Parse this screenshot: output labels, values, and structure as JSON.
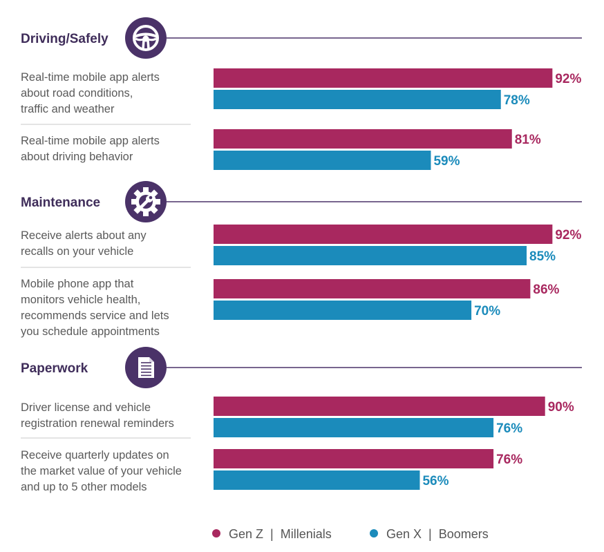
{
  "chart_data": {
    "type": "bar",
    "orientation": "horizontal",
    "xlim": [
      0,
      100
    ],
    "value_suffix": "%",
    "legend_position": "bottom-center",
    "colors": {
      "gen_z_millenials": "#a8285f",
      "gen_x_boomers": "#1b8bbb",
      "section_purple": "#4a3268",
      "divider": "#c8c8c8"
    },
    "series": [
      {
        "legend": "Gen Z  |  Millenials"
      },
      {
        "legend": "Gen X  |  Boomers"
      }
    ],
    "sections": [
      {
        "title": "Driving/Safely",
        "icon": "steering-wheel-icon",
        "items": [
          {
            "label": [
              "Real-time mobile app alerts",
              "about road conditions,",
              "traffic and weather"
            ],
            "values": [
              92,
              78
            ]
          },
          {
            "label": [
              "Real-time mobile app alerts",
              "about driving behavior"
            ],
            "values": [
              81,
              59
            ]
          }
        ]
      },
      {
        "title": "Maintenance",
        "icon": "gear-wrench-icon",
        "items": [
          {
            "label": [
              "Receive alerts about any",
              "recalls on your vehicle"
            ],
            "values": [
              92,
              85
            ]
          },
          {
            "label": [
              "Mobile phone app that",
              "monitors vehicle health,",
              "recommends service and lets",
              "you schedule appointments"
            ],
            "values": [
              86,
              70
            ]
          }
        ]
      },
      {
        "title": "Paperwork",
        "icon": "document-icon",
        "items": [
          {
            "label": [
              "Driver license and vehicle",
              "registration renewal reminders"
            ],
            "values": [
              90,
              76
            ]
          },
          {
            "label": [
              "Receive quarterly updates on",
              "the market value of your vehicle",
              "and up to 5 other models"
            ],
            "values": [
              76,
              56
            ]
          }
        ]
      }
    ]
  }
}
